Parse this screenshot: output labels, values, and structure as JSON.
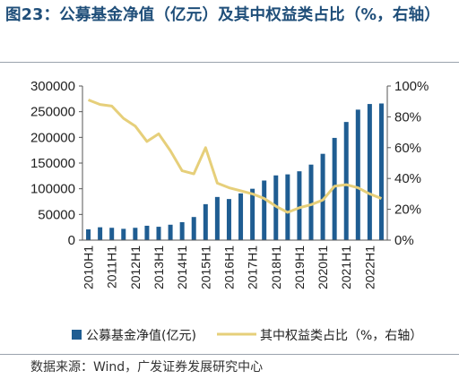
{
  "title": "图23：公募基金净值（亿元）及其中权益类占比（%，右轴）",
  "source": "数据来源：Wind，广发证券发展研究中心",
  "colors": {
    "bar": "#1f5d92",
    "line": "#e6cf7a",
    "title": "#1f4e79"
  },
  "chart_data": {
    "type": "bar+line",
    "categories": [
      "2010H1",
      "2010H2",
      "2011H1",
      "2011H2",
      "2012H1",
      "2012H2",
      "2013H1",
      "2013H2",
      "2014H1",
      "2014H2",
      "2015H1",
      "2015H2",
      "2016H1",
      "2016H2",
      "2017H1",
      "2017H2",
      "2018H1",
      "2018H2",
      "2019H1",
      "2019H2",
      "2020H1",
      "2020H2",
      "2021H1",
      "2021H2",
      "2022H1",
      "2022H2"
    ],
    "x_tick_labels": [
      "2010H1",
      "2011H1",
      "2012H1",
      "2013H1",
      "2014H1",
      "2015H1",
      "2016H1",
      "2017H1",
      "2018H1",
      "2019H1",
      "2020H1",
      "2021H1",
      "2022H1"
    ],
    "series": [
      {
        "name": "公募基金净值(亿元)",
        "type": "bar",
        "axis": "left",
        "values": [
          21000,
          25000,
          24000,
          22000,
          24000,
          28000,
          26000,
          30000,
          35000,
          45000,
          70000,
          84000,
          80000,
          91000,
          100000,
          116000,
          126000,
          128000,
          134000,
          147000,
          168000,
          199000,
          230000,
          254000,
          265000,
          266000
        ]
      },
      {
        "name": "其中权益类占比（%，右轴）",
        "type": "line",
        "axis": "right",
        "values": [
          91,
          88,
          87,
          79,
          74,
          64,
          69,
          58,
          45,
          43,
          60,
          37,
          34,
          32,
          30,
          27,
          22,
          18,
          21,
          23,
          26,
          35,
          36,
          34,
          30,
          27
        ]
      }
    ],
    "y_left": {
      "min": 0,
      "max": 300000,
      "ticks": [
        "0",
        "50000",
        "100000",
        "150000",
        "200000",
        "250000",
        "300000"
      ]
    },
    "y_right": {
      "min": 0,
      "max": 100,
      "ticks": [
        "0%",
        "20%",
        "40%",
        "60%",
        "80%",
        "100%"
      ]
    },
    "legend_position": "bottom"
  }
}
